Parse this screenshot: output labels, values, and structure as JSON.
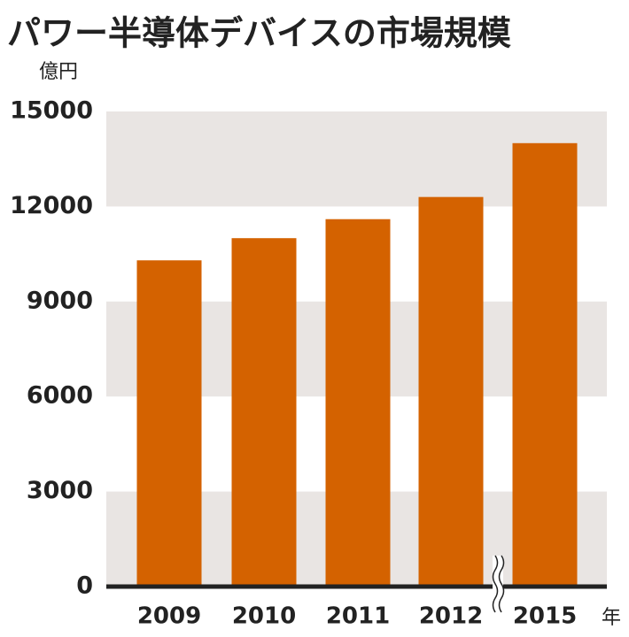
{
  "chart_data": {
    "type": "bar",
    "title": "パワー半導体デバイスの市場規模",
    "y_label": "億円",
    "x_label": "年",
    "categories": [
      "2009",
      "2010",
      "2011",
      "2012",
      "2015"
    ],
    "values": [
      10300,
      11000,
      11600,
      12300,
      14000
    ],
    "color": "#d46200",
    "ylim": [
      0,
      15000
    ],
    "yticks": [
      0,
      3000,
      6000,
      9000,
      12000,
      15000
    ]
  }
}
